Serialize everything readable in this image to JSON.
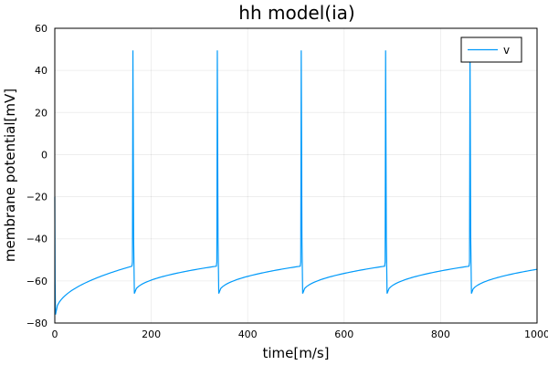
{
  "chart_data": {
    "type": "line",
    "title": "hh model(ia)",
    "xlabel": "time[m/s]",
    "ylabel": "membrane potential[mV]",
    "xlim": [
      0,
      1000
    ],
    "ylim": [
      -80,
      60
    ],
    "xticks": [
      0,
      200,
      400,
      600,
      800,
      1000
    ],
    "yticks": [
      -80,
      -60,
      -40,
      -20,
      0,
      20,
      40,
      60
    ],
    "grid": true,
    "legend_position": "top-right",
    "series": [
      {
        "name": "v",
        "color": "#009AFA",
        "spike_times": [
          162,
          337,
          511,
          686,
          861
        ],
        "spike_peak": 49.5,
        "rest_start": -76,
        "post_spike_min": -66,
        "pre_spike_level": -53,
        "end_value": -54.5
      }
    ]
  }
}
